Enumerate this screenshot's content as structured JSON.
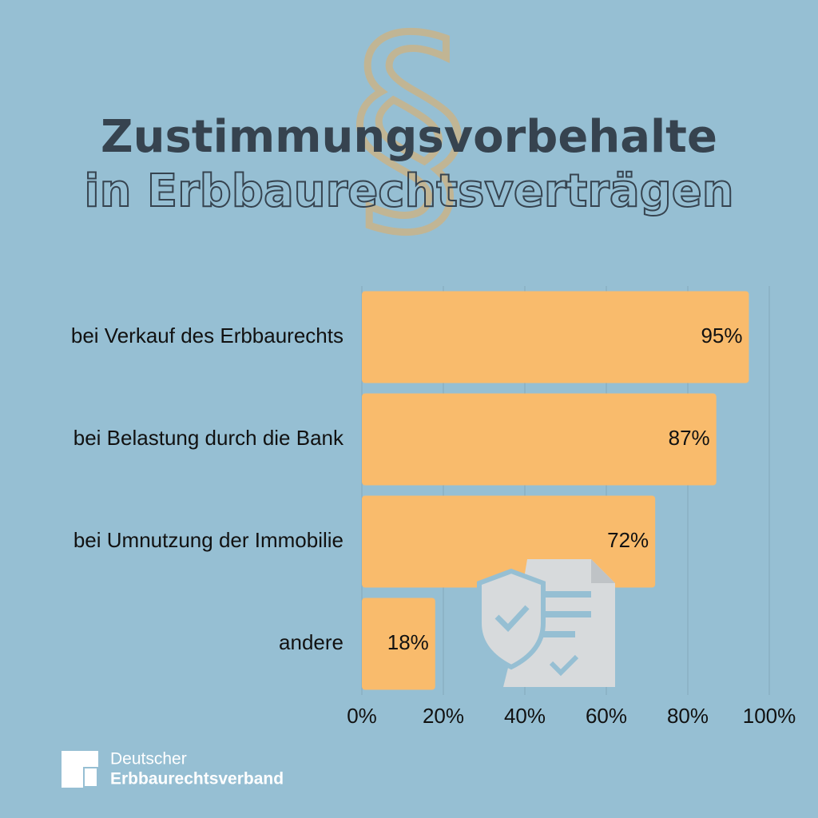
{
  "chart_data": {
    "type": "bar",
    "orientation": "horizontal",
    "title": "Zustimmungsvorbehalte",
    "subtitle": "in Erbbaurechtsverträgen",
    "watermark": "§",
    "categories": [
      "bei Verkauf des Erbbaurechts",
      "bei Belastung durch die Bank",
      "bei Umnutzung der Immobilie",
      "andere"
    ],
    "values": [
      95,
      87,
      72,
      18
    ],
    "value_labels": [
      "95%",
      "87%",
      "72%",
      "18%"
    ],
    "color": "#f9bb6c",
    "xlim": [
      0,
      100
    ],
    "xticks": [
      {
        "value": 0,
        "label": "0%"
      },
      {
        "value": 20,
        "label": "20%"
      },
      {
        "value": 40,
        "label": "40%"
      },
      {
        "value": 60,
        "label": "60%"
      },
      {
        "value": 80,
        "label": "80%"
      },
      {
        "value": 100,
        "label": "100%"
      }
    ],
    "grid": true,
    "logo": {
      "line1": "Deutscher",
      "line2": "Erbbaurechtsverband"
    }
  }
}
